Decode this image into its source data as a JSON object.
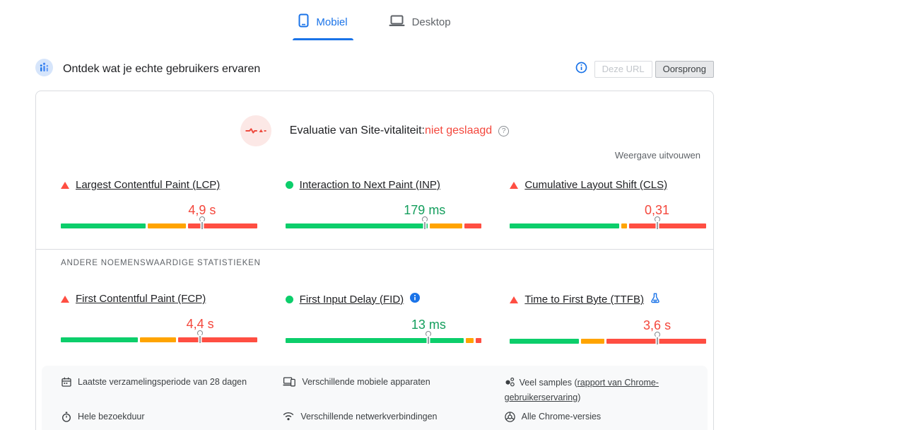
{
  "tabs": {
    "mobile": "Mobiel",
    "desktop": "Desktop"
  },
  "header": {
    "title": "Ontdek wat je echte gebruikers ervaren",
    "this_url_label": "Deze URL",
    "origin_label": "Oorsprong"
  },
  "assessment": {
    "prefix": "Evaluatie van Site-vitaliteit:",
    "result": "niet geslaagd",
    "expand_label": "Weergave uitvouwen"
  },
  "other_stats_heading": "ANDERE NOEMENSWAARDIGE STATISTIEKEN",
  "core_metrics": [
    {
      "label": "Largest Contentful Paint (LCP)",
      "value": "4,9 s",
      "status": "poor",
      "good_pct": 44,
      "mid_pct": 20,
      "poor_pct": 36,
      "marker_pct": 72
    },
    {
      "label": "Interaction to Next Paint (INP)",
      "value": "179 ms",
      "status": "good",
      "good_pct": 74,
      "mid_pct": 17,
      "poor_pct": 9,
      "marker_pct": 71
    },
    {
      "label": "Cumulative Layout Shift (CLS)",
      "value": "0,31",
      "status": "poor",
      "good_pct": 57,
      "mid_pct": 3,
      "poor_pct": 40,
      "marker_pct": 75
    }
  ],
  "other_metrics": [
    {
      "label": "First Contentful Paint (FCP)",
      "value": "4,4 s",
      "status": "poor",
      "good_pct": 40,
      "mid_pct": 19,
      "poor_pct": 41,
      "marker_pct": 71
    },
    {
      "label": "First Input Delay (FID)",
      "value": "13 ms",
      "status": "good",
      "good_pct": 93,
      "mid_pct": 4,
      "poor_pct": 3,
      "marker_pct": 73
    },
    {
      "label": "Time to First Byte (TTFB)",
      "value": "3,6 s",
      "status": "poor",
      "good_pct": 36,
      "mid_pct": 12,
      "poor_pct": 52,
      "marker_pct": 75
    }
  ],
  "footnotes": {
    "collection_period": "Laatste verzamelingsperiode van 28 dagen",
    "devices": "Verschillende mobiele apparaten",
    "samples_prefix": "Veel samples (",
    "samples_link": "rapport van Chrome-gebruikerservaring",
    "samples_suffix": ")",
    "visit_duration": "Hele bezoekduur",
    "connections": "Verschillende netwerkverbindingen",
    "chrome_versions": "Alle Chrome-versies"
  },
  "colors": {
    "good": "#0cce6b",
    "mid": "#ffa400",
    "poor": "#ff4e42",
    "good_text": "#149e5d",
    "poor_text": "#f4473c",
    "accent": "#1a73e8"
  }
}
